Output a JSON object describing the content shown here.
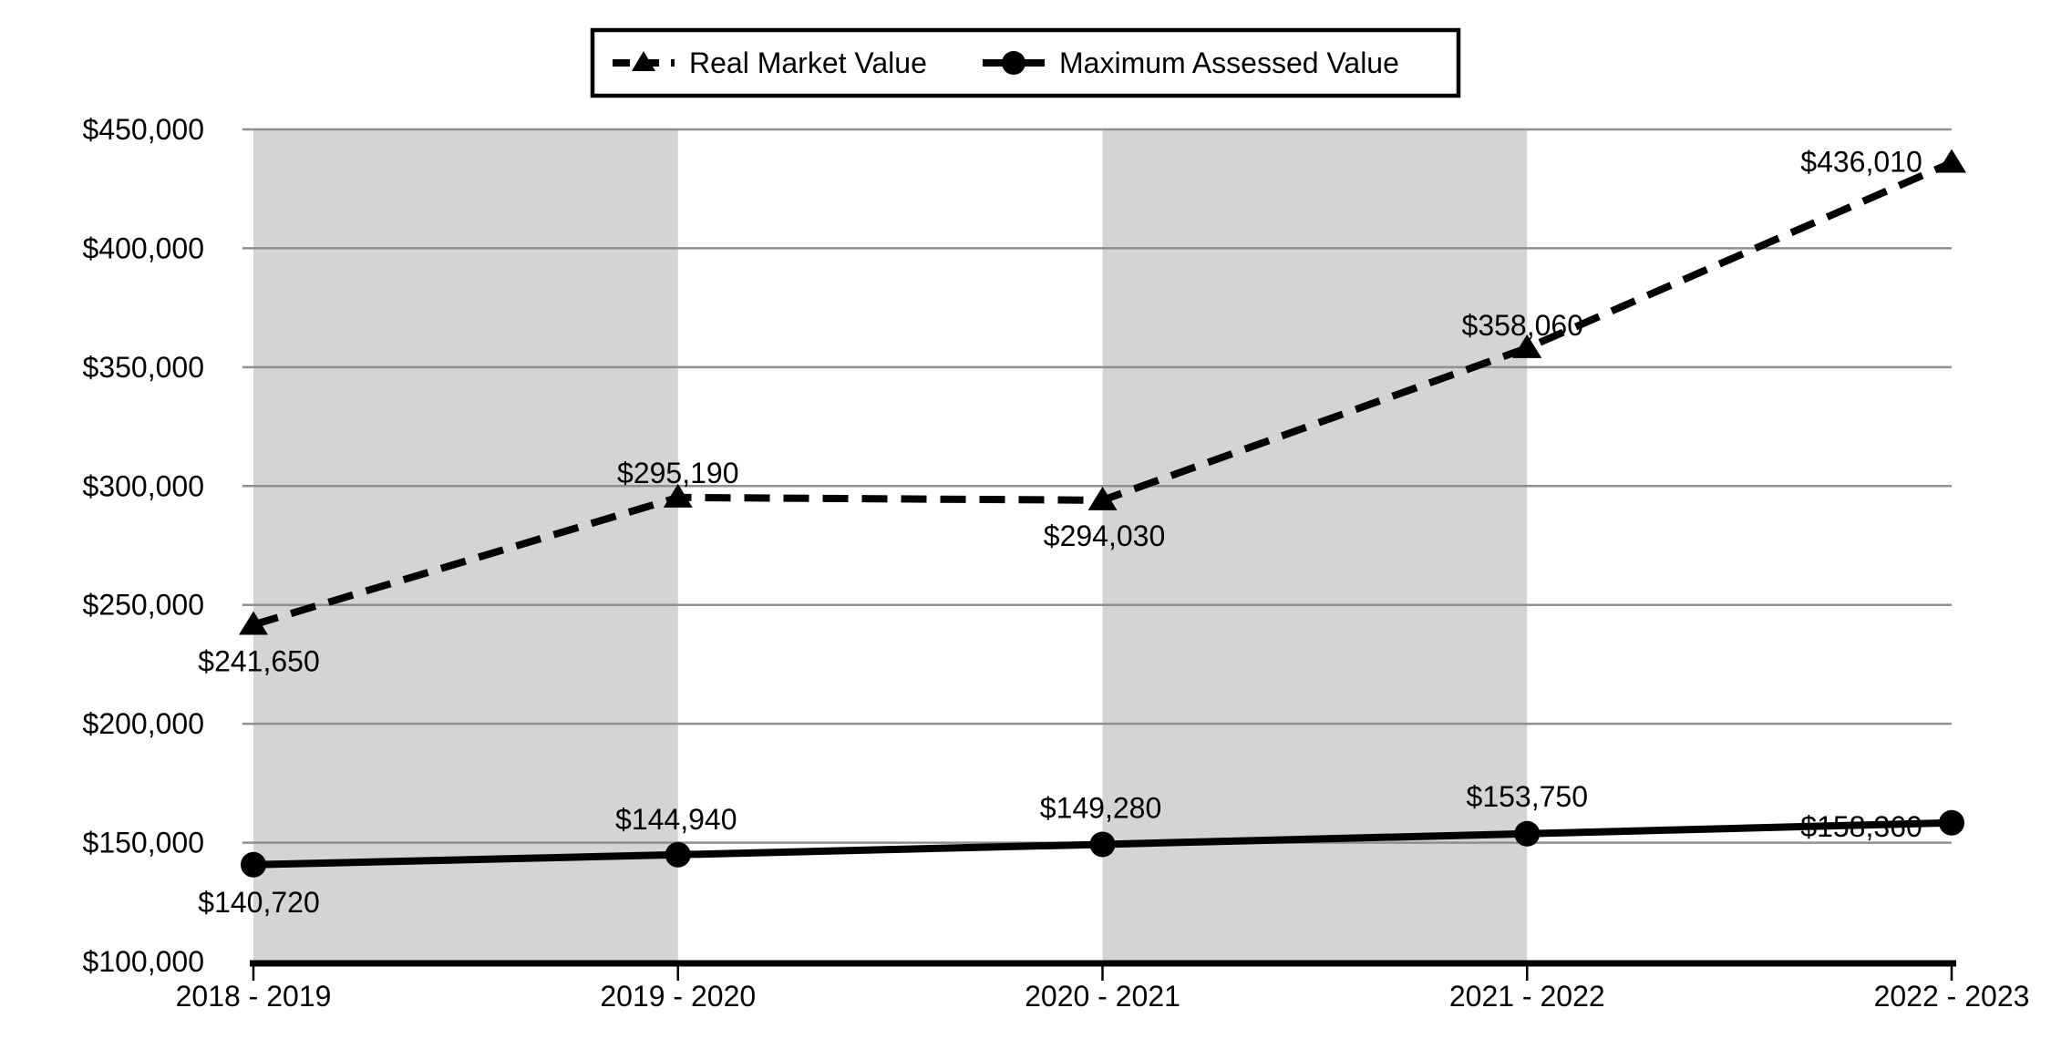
{
  "chart_data": {
    "type": "line",
    "title": "",
    "categories": [
      "2018 - 2019",
      "2019 - 2020",
      "2020 - 2021",
      "2021 - 2022",
      "2022 - 2023"
    ],
    "ylim": [
      100000,
      450000
    ],
    "grid": true,
    "legend_position": "top-center",
    "y_axis_ticks": [
      {
        "label": "$450,000",
        "value": 450000
      },
      {
        "label": "$400,000",
        "value": 400000
      },
      {
        "label": "$350,000",
        "value": 350000
      },
      {
        "label": "$300,000",
        "value": 300000
      },
      {
        "label": "$250,000",
        "value": 250000
      },
      {
        "label": "$200,000",
        "value": 200000
      },
      {
        "label": "$150,000",
        "value": 150000
      },
      {
        "label": "$100,000",
        "value": 100000
      }
    ],
    "series": [
      {
        "name": "Real Market Value",
        "line_style": "dashed",
        "marker": "triangle",
        "values": [
          241650,
          295190,
          294030,
          358060,
          436010
        ],
        "point_labels": [
          "$241,650",
          "$295,190",
          "$294,030",
          "$358,060",
          "$436,010"
        ],
        "label_offsets": [
          [
            6,
            40
          ],
          [
            0,
            -27
          ],
          [
            2,
            39
          ],
          [
            -5,
            -25
          ],
          [
            -99,
            -1
          ]
        ]
      },
      {
        "name": "Maximum Assessed Value",
        "line_style": "solid",
        "marker": "circle",
        "values": [
          140720,
          144940,
          149280,
          153750,
          158360
        ],
        "point_labels": [
          "$140,720",
          "$144,940",
          "$149,280",
          "$153,750",
          "$158,360"
        ],
        "label_offsets": [
          [
            6,
            41
          ],
          [
            -2,
            -39
          ],
          [
            -2,
            -40
          ],
          [
            0,
            -41
          ],
          [
            -99,
            4
          ]
        ]
      }
    ],
    "shaded_band_category_spans": [
      [
        0,
        1
      ],
      [
        2,
        3
      ]
    ],
    "colors": {
      "band": "#d4d4d4",
      "gridline": "#8f8f8f",
      "series_line": "#000000",
      "label_background": "#ffffff",
      "text": "#000000",
      "legend_border": "#000000",
      "legend_background": "#ffffff"
    }
  }
}
